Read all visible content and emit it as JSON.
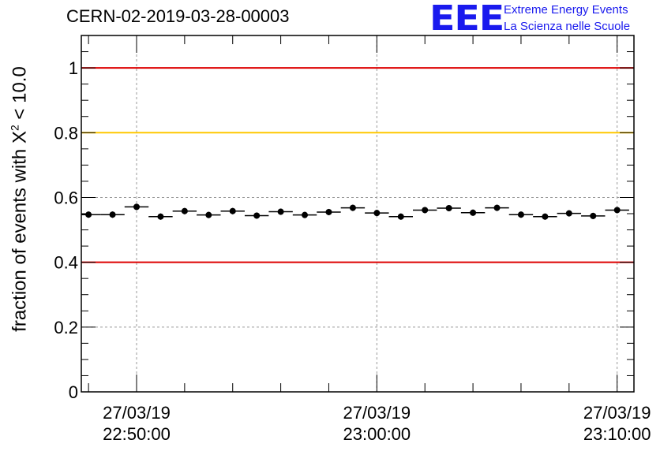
{
  "header": {
    "run_id": "CERN-02-2019-03-28-00003"
  },
  "logo": {
    "mark": "EEE",
    "line1": "Extreme Energy Events",
    "line2": "La Scienza nelle Scuole",
    "color": "#1a1aee"
  },
  "chart_data": {
    "type": "scatter",
    "ylabel_prefix": "fraction of events with ",
    "ylabel_symbol": "X",
    "ylabel_sup": "2",
    "ylabel_suffix": " < 10.0",
    "ylim": [
      0,
      1.1
    ],
    "yticks": [
      {
        "value": 0,
        "label": "0"
      },
      {
        "value": 0.2,
        "label": "0.2"
      },
      {
        "value": 0.4,
        "label": "0.4"
      },
      {
        "value": 0.6,
        "label": "0.6"
      },
      {
        "value": 0.8,
        "label": "0.8"
      },
      {
        "value": 1,
        "label": "1"
      }
    ],
    "xlim_minutes": [
      -12.3,
      10.7
    ],
    "xticks": [
      {
        "value": -10,
        "date": "27/03/19",
        "time": "22:50:00"
      },
      {
        "value": 0,
        "date": "27/03/19",
        "time": "23:00:00"
      },
      {
        "value": 10,
        "date": "27/03/19",
        "time": "23:10:00"
      }
    ],
    "grid": true,
    "bin_width_minutes": 1,
    "x": [
      -12,
      -11,
      -10,
      -9,
      -8,
      -7,
      -6,
      -5,
      -4,
      -3,
      -2,
      -1,
      0,
      1,
      2,
      3,
      4,
      5,
      6,
      7,
      8,
      9,
      10
    ],
    "y": [
      0.547,
      0.547,
      0.571,
      0.541,
      0.558,
      0.546,
      0.558,
      0.544,
      0.556,
      0.546,
      0.555,
      0.568,
      0.552,
      0.541,
      0.561,
      0.567,
      0.553,
      0.568,
      0.547,
      0.541,
      0.551,
      0.543,
      0.561
    ],
    "reference_lines": [
      {
        "value": 1.0,
        "color": "#dd0000"
      },
      {
        "value": 0.8,
        "color": "#ffc800"
      },
      {
        "value": 0.4,
        "color": "#dd0000"
      }
    ]
  }
}
